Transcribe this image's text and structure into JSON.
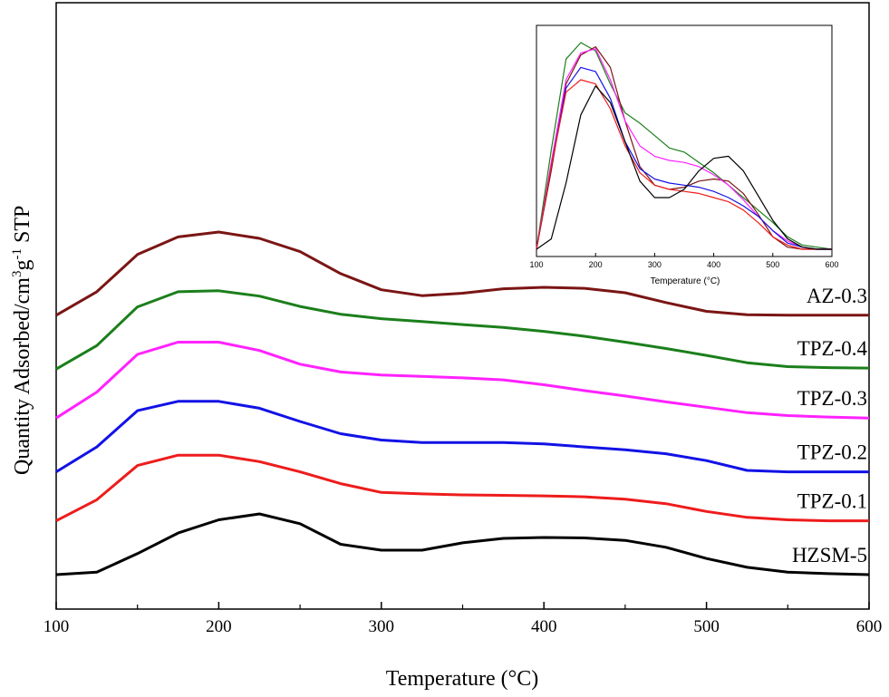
{
  "chart_data": [
    {
      "type": "line",
      "title": "",
      "xlabel": "Temperature (°C)",
      "ylabel_main": "Quantity Adsorbed/cm",
      "ylabel_sup1": "3",
      "ylabel_mid": "g",
      "ylabel_sup2": "-1",
      "ylabel_end": " STP",
      "xlim": [
        100,
        600
      ],
      "xticks": [
        "100",
        "200",
        "300",
        "400",
        "500",
        "600"
      ],
      "yaxis": "offset stacked, arbitrary units",
      "grid": false,
      "legend": "inline labels at right",
      "series": [
        {
          "name": "AZ-0.3",
          "color": "#7b1515",
          "offset": 5.3,
          "x": [
            100,
            125,
            150,
            175,
            200,
            225,
            250,
            275,
            300,
            325,
            350,
            375,
            400,
            425,
            450,
            475,
            500,
            525,
            550,
            575,
            600
          ],
          "y": [
            0.0,
            0.48,
            1.24,
            1.6,
            1.7,
            1.57,
            1.3,
            0.85,
            0.52,
            0.4,
            0.45,
            0.54,
            0.57,
            0.55,
            0.46,
            0.26,
            0.08,
            0.01,
            0.0,
            0.0,
            0.0
          ]
        },
        {
          "name": "TPZ-0.4",
          "color": "#1b7f1b",
          "offset": 4.2,
          "x": [
            100,
            125,
            150,
            175,
            200,
            225,
            250,
            275,
            300,
            325,
            350,
            375,
            400,
            425,
            450,
            475,
            500,
            525,
            550,
            575,
            600
          ],
          "y": [
            0.0,
            0.48,
            1.27,
            1.58,
            1.6,
            1.49,
            1.28,
            1.12,
            1.03,
            0.97,
            0.91,
            0.85,
            0.77,
            0.67,
            0.55,
            0.42,
            0.28,
            0.13,
            0.05,
            0.03,
            0.02
          ]
        },
        {
          "name": "TPZ-0.3",
          "color": "#ff22ff",
          "offset": 3.2,
          "x": [
            100,
            125,
            150,
            175,
            200,
            225,
            250,
            275,
            300,
            325,
            350,
            375,
            400,
            425,
            450,
            475,
            500,
            525,
            550,
            575,
            600
          ],
          "y": [
            0.0,
            0.53,
            1.3,
            1.55,
            1.55,
            1.38,
            1.1,
            0.94,
            0.88,
            0.85,
            0.82,
            0.78,
            0.68,
            0.56,
            0.45,
            0.33,
            0.22,
            0.11,
            0.05,
            0.02,
            0.0
          ]
        },
        {
          "name": "TPZ-0.2",
          "color": "#1212e6",
          "offset": 2.1,
          "x": [
            100,
            125,
            150,
            175,
            200,
            225,
            250,
            275,
            300,
            325,
            350,
            375,
            400,
            425,
            450,
            475,
            500,
            525,
            550,
            575,
            600
          ],
          "y": [
            0.0,
            0.51,
            1.25,
            1.44,
            1.44,
            1.3,
            1.03,
            0.78,
            0.65,
            0.6,
            0.6,
            0.6,
            0.57,
            0.51,
            0.45,
            0.37,
            0.23,
            0.03,
            0.0,
            0.0,
            0.0
          ]
        },
        {
          "name": "TPZ-0.1",
          "color": "#ee1c1c",
          "offset": 1.1,
          "x": [
            100,
            125,
            150,
            175,
            200,
            225,
            250,
            275,
            300,
            325,
            350,
            375,
            400,
            425,
            450,
            475,
            500,
            525,
            550,
            575,
            600
          ],
          "y": [
            0.0,
            0.43,
            1.13,
            1.34,
            1.34,
            1.21,
            1.0,
            0.76,
            0.58,
            0.55,
            0.53,
            0.52,
            0.51,
            0.49,
            0.44,
            0.35,
            0.19,
            0.07,
            0.02,
            0.0,
            0.0
          ]
        },
        {
          "name": "HZSM-5",
          "color": "#000000",
          "offset": 0.0,
          "x": [
            100,
            125,
            150,
            175,
            200,
            225,
            250,
            275,
            300,
            325,
            350,
            375,
            400,
            425,
            450,
            475,
            500,
            525,
            550,
            575,
            600
          ],
          "y": [
            0.0,
            0.05,
            0.43,
            0.85,
            1.12,
            1.24,
            1.04,
            0.62,
            0.5,
            0.5,
            0.65,
            0.74,
            0.76,
            0.75,
            0.7,
            0.56,
            0.33,
            0.15,
            0.05,
            0.02,
            0.0
          ]
        }
      ]
    },
    {
      "type": "line",
      "title": "",
      "xlabel": "Temperature (°C)",
      "xlim": [
        100,
        600
      ],
      "xticks": [
        "100",
        "200",
        "300",
        "400",
        "500",
        "600"
      ],
      "ylim": [
        0,
        1.0
      ],
      "grid": false,
      "legend": "none",
      "series": [
        {
          "color": "#1b7f1b",
          "x": [
            100,
            125,
            150,
            175,
            200,
            225,
            250,
            275,
            300,
            325,
            350,
            375,
            400,
            425,
            450,
            475,
            500,
            525,
            550,
            575,
            600
          ],
          "y": [
            0.0,
            0.48,
            0.92,
            1.0,
            0.96,
            0.8,
            0.66,
            0.61,
            0.55,
            0.49,
            0.47,
            0.42,
            0.37,
            0.31,
            0.25,
            0.19,
            0.13,
            0.06,
            0.02,
            0.01,
            0.0
          ]
        },
        {
          "color": "#7b1515",
          "x": [
            100,
            125,
            150,
            175,
            200,
            225,
            250,
            275,
            300,
            325,
            350,
            375,
            400,
            425,
            450,
            475,
            500,
            525,
            550,
            575,
            600
          ],
          "y": [
            0.0,
            0.38,
            0.8,
            0.94,
            0.98,
            0.88,
            0.62,
            0.4,
            0.31,
            0.29,
            0.3,
            0.33,
            0.34,
            0.33,
            0.27,
            0.17,
            0.06,
            0.01,
            0.0,
            0.0,
            0.0
          ]
        },
        {
          "color": "#ff22ff",
          "x": [
            100,
            125,
            150,
            175,
            200,
            225,
            250,
            275,
            300,
            325,
            350,
            375,
            400,
            425,
            450,
            475,
            500,
            525,
            550,
            575,
            600
          ],
          "y": [
            0.0,
            0.42,
            0.82,
            0.95,
            0.97,
            0.82,
            0.62,
            0.5,
            0.45,
            0.43,
            0.42,
            0.4,
            0.36,
            0.31,
            0.24,
            0.16,
            0.09,
            0.04,
            0.01,
            0.0,
            0.0
          ]
        },
        {
          "color": "#1212e6",
          "x": [
            100,
            125,
            150,
            175,
            200,
            225,
            250,
            275,
            300,
            325,
            350,
            375,
            400,
            425,
            450,
            475,
            500,
            525,
            550,
            575,
            600
          ],
          "y": [
            0.0,
            0.4,
            0.78,
            0.88,
            0.86,
            0.73,
            0.52,
            0.39,
            0.34,
            0.32,
            0.31,
            0.3,
            0.28,
            0.25,
            0.21,
            0.16,
            0.09,
            0.03,
            0.01,
            0.0,
            0.0
          ]
        },
        {
          "color": "#ee1c1c",
          "x": [
            100,
            125,
            150,
            175,
            200,
            225,
            250,
            275,
            300,
            325,
            350,
            375,
            400,
            425,
            450,
            475,
            500,
            525,
            550,
            575,
            600
          ],
          "y": [
            0.0,
            0.4,
            0.76,
            0.82,
            0.8,
            0.68,
            0.5,
            0.37,
            0.31,
            0.29,
            0.28,
            0.27,
            0.25,
            0.23,
            0.19,
            0.13,
            0.06,
            0.02,
            0.0,
            0.0,
            0.0
          ]
        },
        {
          "color": "#000000",
          "x": [
            100,
            125,
            150,
            175,
            200,
            225,
            250,
            275,
            300,
            325,
            350,
            375,
            400,
            425,
            450,
            475,
            500,
            525,
            550,
            575,
            600
          ],
          "y": [
            0.0,
            0.05,
            0.32,
            0.65,
            0.79,
            0.71,
            0.52,
            0.33,
            0.25,
            0.25,
            0.29,
            0.38,
            0.44,
            0.45,
            0.38,
            0.26,
            0.14,
            0.05,
            0.01,
            0.0,
            0.0
          ]
        }
      ]
    }
  ]
}
